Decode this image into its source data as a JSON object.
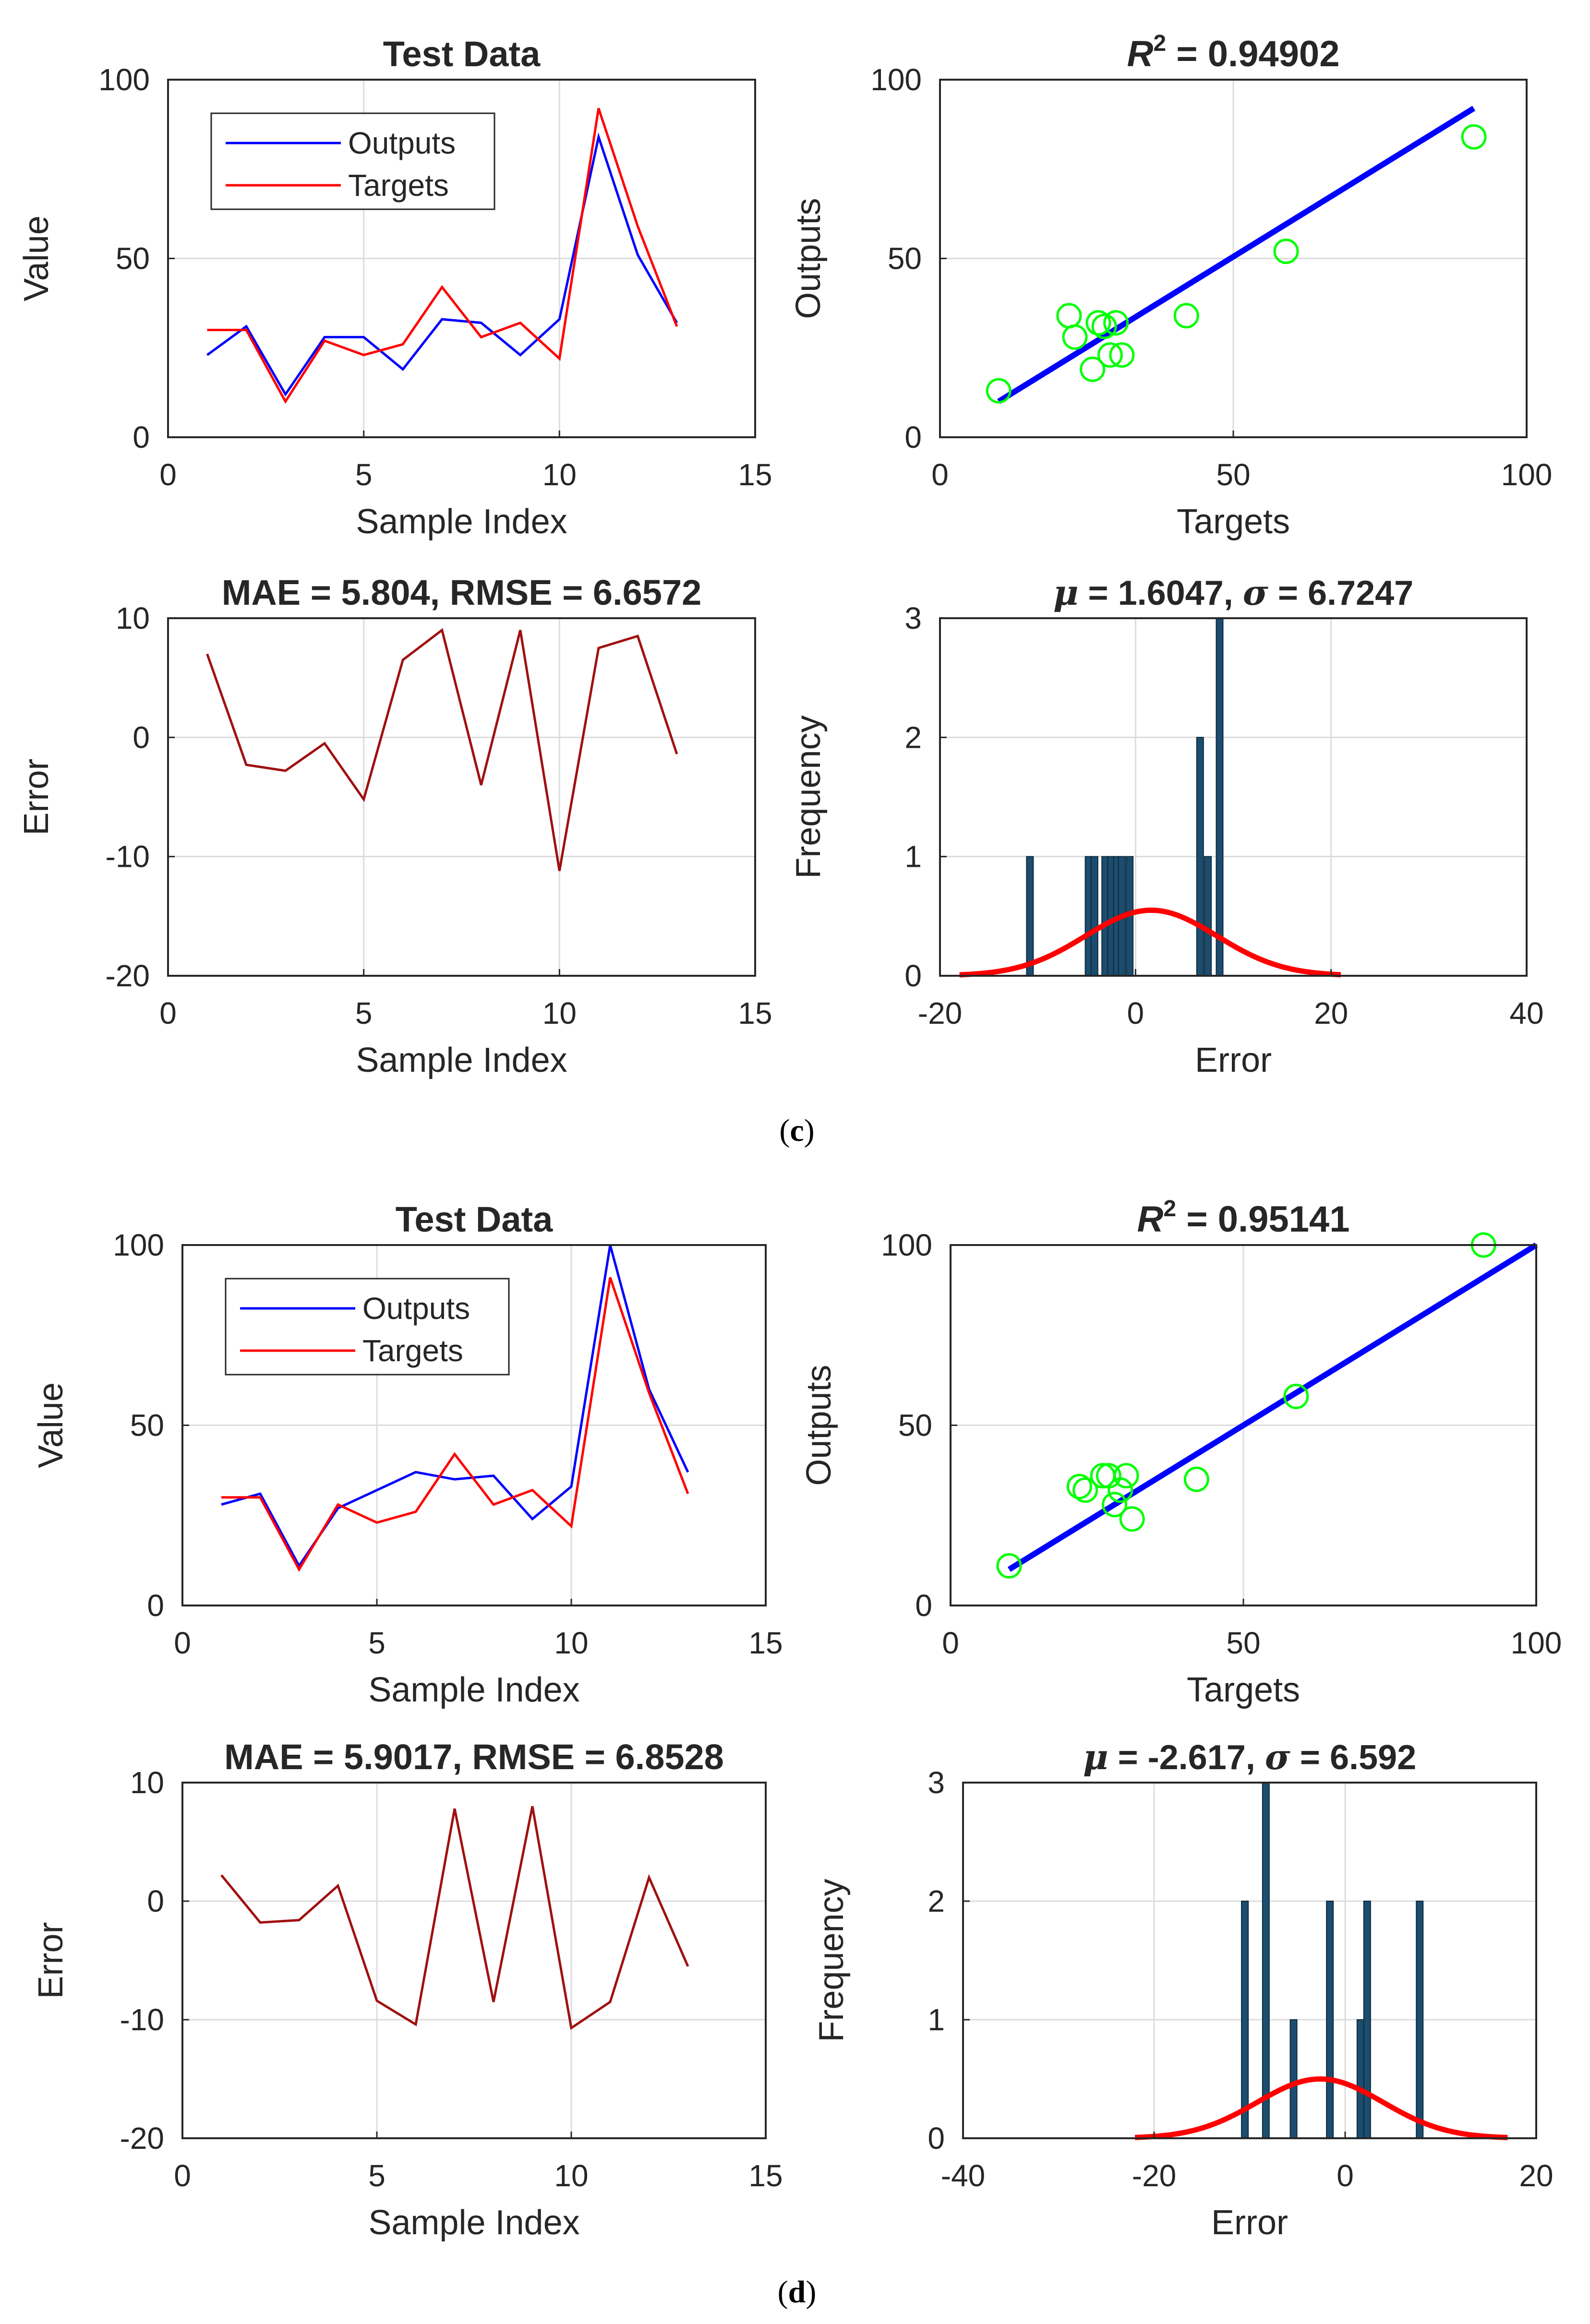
{
  "colors": {
    "outputs": "#0000ff",
    "targets": "#ff0000",
    "error": "#a01010",
    "scatter": "#00ff00",
    "fit": "#0000ff",
    "bar": "#1d4d6e",
    "normal": "#ff0000",
    "grid": "#dcdcdc"
  },
  "labels": {
    "c": {
      "open": "(",
      "letter": "c",
      "close": ")"
    },
    "d": {
      "open": "(",
      "letter": "d",
      "close": ")"
    }
  },
  "chart_data": [
    {
      "id": "c1",
      "type": "line",
      "title": "Test Data",
      "xlabel": "Sample Index",
      "ylabel": "Value",
      "xlim": [
        0,
        15
      ],
      "ylim": [
        0,
        100
      ],
      "xticks": [
        0,
        5,
        10,
        15
      ],
      "yticks": [
        0,
        50,
        100
      ],
      "x": [
        1,
        2,
        3,
        4,
        5,
        6,
        7,
        8,
        9,
        10,
        11,
        12,
        13
      ],
      "series": [
        {
          "name": "Outputs",
          "color": "#0000ff",
          "values": [
            23,
            31,
            12,
            28,
            28,
            19,
            33,
            32,
            23,
            33,
            84,
            51,
            32
          ]
        },
        {
          "name": "Targets",
          "color": "#ff0000",
          "values": [
            30,
            30,
            10,
            27,
            23,
            26,
            42,
            28,
            32,
            22,
            92,
            59,
            31
          ]
        }
      ],
      "legend": [
        "Outputs",
        "Targets"
      ]
    },
    {
      "id": "c2",
      "type": "scatter",
      "title": "R² = 0.94902",
      "title_main": "R",
      "title_sup": "2",
      "title_rest": " = 0.94902",
      "xlabel": "Targets",
      "ylabel": "Outputs",
      "xlim": [
        0,
        100
      ],
      "ylim": [
        0,
        100
      ],
      "xticks": [
        0,
        50,
        100
      ],
      "yticks": [
        0,
        50,
        100
      ],
      "points": [
        [
          10,
          13
        ],
        [
          22,
          34
        ],
        [
          23,
          28
        ],
        [
          26,
          19
        ],
        [
          27,
          32
        ],
        [
          28,
          31
        ],
        [
          29,
          23
        ],
        [
          30,
          32
        ],
        [
          31,
          23
        ],
        [
          42,
          34
        ],
        [
          59,
          52
        ],
        [
          91,
          84
        ]
      ],
      "fit_line": [
        [
          10,
          10
        ],
        [
          91,
          92
        ]
      ]
    },
    {
      "id": "c3",
      "type": "line",
      "title": "MAE = 5.804, RMSE = 6.6572",
      "xlabel": "Sample Index",
      "ylabel": "Error",
      "xlim": [
        0,
        15
      ],
      "ylim": [
        -20,
        10
      ],
      "xticks": [
        0,
        5,
        10,
        15
      ],
      "yticks": [
        -20,
        -10,
        0,
        10
      ],
      "x": [
        1,
        2,
        3,
        4,
        5,
        6,
        7,
        8,
        9,
        10,
        11,
        12,
        13
      ],
      "series": [
        {
          "name": "Error",
          "color": "#a01010",
          "values": [
            7,
            -2.3,
            -2.8,
            -0.5,
            -5.2,
            6.5,
            9,
            -4,
            9,
            -11.2,
            7.5,
            8.5,
            -1.4
          ]
        }
      ]
    },
    {
      "id": "c4",
      "type": "bar",
      "title": "μ = 1.6047, σ = 6.7247",
      "title_mu": "μ",
      "title_mu_rest": " = 1.6047, ",
      "title_sigma": "σ",
      "title_sigma_rest": " = 6.7247",
      "xlabel": "Error",
      "ylabel": "Frequency",
      "xlim": [
        -20,
        40
      ],
      "ylim": [
        0,
        3
      ],
      "xticks": [
        -20,
        0,
        20,
        40
      ],
      "yticks": [
        0,
        1,
        2,
        3
      ],
      "bars": [
        [
          -10.8,
          1
        ],
        [
          -4.8,
          1
        ],
        [
          -4.2,
          1
        ],
        [
          -3.1,
          1
        ],
        [
          -2.5,
          1
        ],
        [
          -1.9,
          1
        ],
        [
          -1.4,
          1
        ],
        [
          -0.6,
          1
        ],
        [
          6.6,
          2
        ],
        [
          7.4,
          1
        ],
        [
          8.6,
          3
        ]
      ],
      "normal": {
        "mu": 1.6047,
        "sigma": 6.7247,
        "peak": 0.55,
        "range": [
          -18,
          21
        ]
      }
    },
    {
      "id": "d1",
      "type": "line",
      "title": "Test Data",
      "xlabel": "Sample Index",
      "ylabel": "Value",
      "xlim": [
        0,
        15
      ],
      "ylim": [
        0,
        100
      ],
      "xticks": [
        0,
        5,
        10,
        15
      ],
      "yticks": [
        0,
        50,
        100
      ],
      "x": [
        1,
        2,
        3,
        4,
        5,
        6,
        7,
        8,
        9,
        10,
        11,
        12,
        13
      ],
      "series": [
        {
          "name": "Outputs",
          "color": "#0000ff",
          "values": [
            28,
            31,
            11,
            27,
            32,
            37,
            35,
            36,
            24,
            33,
            100,
            60,
            37
          ]
        },
        {
          "name": "Targets",
          "color": "#ff0000",
          "values": [
            30,
            30,
            10,
            28,
            23,
            26,
            42,
            28,
            32,
            22,
            91,
            59,
            31
          ]
        }
      ],
      "legend": [
        "Outputs",
        "Targets"
      ]
    },
    {
      "id": "d2",
      "type": "scatter",
      "title": "R² = 0.95141",
      "title_main": "R",
      "title_sup": "2",
      "title_rest": " = 0.95141",
      "xlabel": "Targets",
      "ylabel": "Outputs",
      "xlim": [
        0,
        100
      ],
      "ylim": [
        0,
        100
      ],
      "xticks": [
        0,
        50,
        100
      ],
      "yticks": [
        0,
        50,
        100
      ],
      "points": [
        [
          10,
          11
        ],
        [
          22,
          33
        ],
        [
          23,
          32
        ],
        [
          26,
          36
        ],
        [
          27,
          36
        ],
        [
          28,
          28
        ],
        [
          29,
          32
        ],
        [
          30,
          36
        ],
        [
          31,
          24
        ],
        [
          42,
          35
        ],
        [
          59,
          58
        ],
        [
          91,
          100
        ]
      ],
      "fit_line": [
        [
          10,
          10
        ],
        [
          100,
          100
        ]
      ]
    },
    {
      "id": "d3",
      "type": "line",
      "title": "MAE = 5.9017, RMSE = 6.8528",
      "xlabel": "Sample Index",
      "ylabel": "Error",
      "xlim": [
        0,
        15
      ],
      "ylim": [
        -20,
        10
      ],
      "xticks": [
        0,
        5,
        10,
        15
      ],
      "yticks": [
        -20,
        -10,
        0,
        10
      ],
      "x": [
        1,
        2,
        3,
        4,
        5,
        6,
        7,
        8,
        9,
        10,
        11,
        12,
        13
      ],
      "series": [
        {
          "name": "Error",
          "color": "#a01010",
          "values": [
            2.2,
            -1.8,
            -1.6,
            1.3,
            -8.4,
            -10.4,
            7.8,
            -8.5,
            8,
            -10.7,
            -8.5,
            2,
            -5.5
          ]
        }
      ]
    },
    {
      "id": "d4",
      "type": "bar",
      "title": "μ = -2.617, σ = 6.592",
      "title_mu": "μ",
      "title_mu_rest": " = -2.617, ",
      "title_sigma": "σ",
      "title_sigma_rest": " = 6.592",
      "xlabel": "Error",
      "ylabel": "Frequency",
      "xlim": [
        -40,
        20
      ],
      "ylim": [
        0,
        3
      ],
      "xticks": [
        -40,
        -20,
        0,
        20
      ],
      "yticks": [
        0,
        1,
        2,
        3
      ],
      "bars": [
        [
          -10.5,
          2
        ],
        [
          -8.3,
          3
        ],
        [
          -5.4,
          1
        ],
        [
          -1.6,
          2
        ],
        [
          1.6,
          1
        ],
        [
          2.3,
          2
        ],
        [
          7.8,
          2
        ]
      ],
      "normal": {
        "mu": -2.617,
        "sigma": 6.592,
        "peak": 0.5,
        "range": [
          -22,
          17
        ]
      }
    }
  ]
}
